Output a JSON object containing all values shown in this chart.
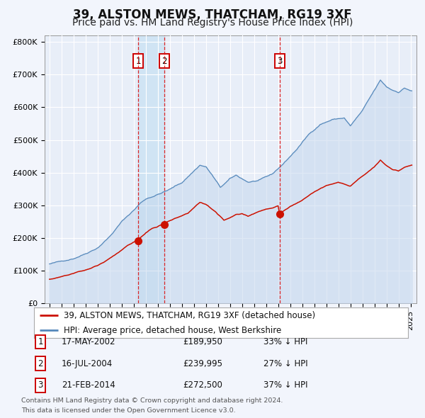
{
  "title": "39, ALSTON MEWS, THATCHAM, RG19 3XF",
  "subtitle": "Price paid vs. HM Land Registry's House Price Index (HPI)",
  "hpi_label": "HPI: Average price, detached house, West Berkshire",
  "property_label": "39, ALSTON MEWS, THATCHAM, RG19 3XF (detached house)",
  "ylim": [
    0,
    820000
  ],
  "yticks": [
    0,
    100000,
    200000,
    300000,
    400000,
    500000,
    600000,
    700000,
    800000
  ],
  "xlim_start": 1994.6,
  "xlim_end": 2025.5,
  "fig_bg_color": "#f2f5fc",
  "plot_bg_color": "#e8eef8",
  "grid_color": "#ffffff",
  "hpi_color": "#5588bb",
  "hpi_fill_color": "#c5d8ee",
  "property_color": "#cc1100",
  "vline_color": "#dd1111",
  "span_color": "#d0e4f4",
  "transactions": [
    {
      "num": 1,
      "date": "17-MAY-2002",
      "year": 2002.375,
      "price": 189950,
      "pct": "33%",
      "dir": "↓"
    },
    {
      "num": 2,
      "date": "16-JUL-2004",
      "year": 2004.542,
      "price": 239995,
      "pct": "27%",
      "dir": "↓"
    },
    {
      "num": 3,
      "date": "21-FEB-2014",
      "year": 2014.125,
      "price": 272500,
      "pct": "37%",
      "dir": "↓"
    }
  ],
  "footnote1": "Contains HM Land Registry data © Crown copyright and database right 2024.",
  "footnote2": "This data is licensed under the Open Government Licence v3.0.",
  "title_fontsize": 12,
  "subtitle_fontsize": 10,
  "tick_fontsize": 8,
  "legend_fontsize": 8.5,
  "table_fontsize": 8.5
}
